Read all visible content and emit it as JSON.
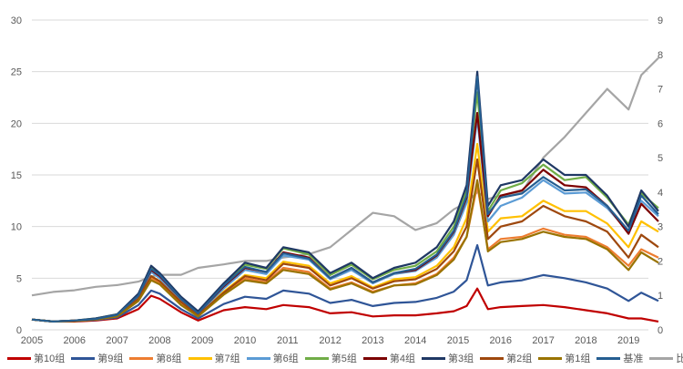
{
  "chart_data": {
    "type": "line",
    "title": "",
    "xlabel": "",
    "ylabel": "",
    "xlim": [
      2005,
      2019.8
    ],
    "ylim": [
      0,
      30
    ],
    "y2lim": [
      0,
      9
    ],
    "grid": "horizontal",
    "legend_placement": "bottom",
    "x_ticks": [
      "2005",
      "2006",
      "2007",
      "2008",
      "2009",
      "2010",
      "2011",
      "2012",
      "2013",
      "2014",
      "2015",
      "2016",
      "2017",
      "2018",
      "2019"
    ],
    "y_ticks": [
      "0",
      "5",
      "10",
      "15",
      "20",
      "25",
      "30"
    ],
    "y2_ticks": [
      "0",
      "1",
      "2",
      "3",
      "4",
      "5",
      "6",
      "7",
      "8",
      "9"
    ],
    "x": [
      2005.0,
      2005.5,
      2006.0,
      2006.5,
      2007.0,
      2007.5,
      2007.8,
      2008.0,
      2008.5,
      2008.9,
      2009.5,
      2010.0,
      2010.5,
      2010.9,
      2011.5,
      2012.0,
      2012.5,
      2013.0,
      2013.5,
      2014.0,
      2014.5,
      2014.9,
      2015.2,
      2015.45,
      2015.7,
      2016.0,
      2016.5,
      2017.0,
      2017.5,
      2018.0,
      2018.5,
      2019.0,
      2019.3,
      2019.7
    ],
    "series": [
      {
        "name": "比价(右轴)",
        "color": "#A5A5A5",
        "axis": "right",
        "values": [
          1.0,
          1.1,
          1.15,
          1.25,
          1.3,
          1.4,
          1.55,
          1.6,
          1.6,
          1.8,
          1.9,
          2.0,
          2.0,
          2.1,
          2.2,
          2.4,
          2.9,
          3.4,
          3.3,
          2.9,
          3.1,
          3.5,
          3.7,
          4.0,
          3.8,
          3.9,
          4.0,
          5.0,
          5.6,
          6.3,
          7.0,
          6.4,
          7.4,
          7.9
        ]
      },
      {
        "name": "第10组",
        "color": "#C00000",
        "axis": "left",
        "values": [
          1.0,
          0.8,
          0.8,
          0.9,
          1.1,
          2.0,
          3.3,
          3.0,
          1.7,
          0.9,
          1.9,
          2.2,
          2.0,
          2.4,
          2.2,
          1.6,
          1.7,
          1.3,
          1.4,
          1.4,
          1.6,
          1.8,
          2.3,
          4.0,
          2.0,
          2.2,
          2.3,
          2.4,
          2.2,
          1.9,
          1.6,
          1.1,
          1.1,
          0.8
        ]
      },
      {
        "name": "第9组",
        "color": "#2F5597",
        "axis": "left",
        "values": [
          1.0,
          0.8,
          0.85,
          0.95,
          1.2,
          2.4,
          3.8,
          3.5,
          2.0,
          1.1,
          2.5,
          3.2,
          3.0,
          3.8,
          3.5,
          2.6,
          2.9,
          2.3,
          2.6,
          2.7,
          3.1,
          3.7,
          4.8,
          8.2,
          4.3,
          4.6,
          4.8,
          5.3,
          5.0,
          4.6,
          4.0,
          2.8,
          3.6,
          2.8
        ]
      },
      {
        "name": "第8组",
        "color": "#ED7D31",
        "axis": "left",
        "values": [
          1.0,
          0.8,
          0.85,
          1.0,
          1.3,
          2.9,
          5.0,
          4.5,
          2.5,
          1.3,
          3.5,
          5.0,
          4.6,
          6.0,
          5.6,
          4.0,
          4.6,
          3.7,
          4.3,
          4.5,
          5.4,
          7.0,
          9.0,
          14.0,
          7.8,
          8.8,
          9.0,
          9.8,
          9.2,
          9.0,
          8.0,
          6.2,
          7.8,
          7.0
        ]
      },
      {
        "name": "第7组",
        "color": "#FFC000",
        "axis": "left",
        "values": [
          1.0,
          0.8,
          0.9,
          1.0,
          1.35,
          3.0,
          5.2,
          4.7,
          2.7,
          1.4,
          3.7,
          5.3,
          5.0,
          6.6,
          6.2,
          4.5,
          5.2,
          4.1,
          4.9,
          5.1,
          6.2,
          8.0,
          10.8,
          18.0,
          9.5,
          10.8,
          11.0,
          12.5,
          11.5,
          11.5,
          10.3,
          8.0,
          10.5,
          9.5
        ]
      },
      {
        "name": "第6组",
        "color": "#5B9BD5",
        "axis": "left",
        "values": [
          1.0,
          0.8,
          0.9,
          1.05,
          1.4,
          3.2,
          5.6,
          5.0,
          2.9,
          1.55,
          4.0,
          5.8,
          5.4,
          7.2,
          6.8,
          4.9,
          5.8,
          4.5,
          5.4,
          5.7,
          7.0,
          9.2,
          12.3,
          20.5,
          10.5,
          12.0,
          12.8,
          14.5,
          13.2,
          13.3,
          11.8,
          9.5,
          12.5,
          11.0
        ]
      },
      {
        "name": "第5组",
        "color": "#70AD47",
        "axis": "left",
        "values": [
          1.0,
          0.8,
          0.9,
          1.1,
          1.5,
          3.4,
          6.0,
          5.4,
          3.1,
          1.7,
          4.4,
          6.3,
          5.9,
          7.9,
          7.3,
          5.3,
          6.3,
          4.9,
          5.8,
          6.2,
          7.6,
          10.0,
          13.5,
          23.0,
          11.5,
          13.5,
          14.2,
          16.0,
          14.5,
          14.8,
          12.8,
          10.2,
          13.2,
          11.8
        ]
      },
      {
        "name": "第4组",
        "color": "#7B0000",
        "axis": "left",
        "values": [
          1.0,
          0.8,
          0.9,
          1.05,
          1.45,
          3.3,
          5.8,
          5.2,
          3.0,
          1.6,
          4.2,
          6.0,
          5.6,
          7.5,
          7.0,
          5.0,
          6.0,
          4.6,
          5.5,
          5.8,
          7.2,
          9.5,
          12.8,
          21.0,
          11.0,
          13.0,
          13.5,
          15.5,
          14.0,
          13.8,
          12.0,
          9.3,
          12.2,
          10.5
        ]
      },
      {
        "name": "第3组",
        "color": "#1F3864",
        "axis": "left",
        "values": [
          1.0,
          0.8,
          0.9,
          1.1,
          1.5,
          3.5,
          6.2,
          5.5,
          3.2,
          1.8,
          4.5,
          6.5,
          6.0,
          8.0,
          7.5,
          5.5,
          6.5,
          5.0,
          6.0,
          6.5,
          8.0,
          10.5,
          14.0,
          25.0,
          12.0,
          14.0,
          14.5,
          16.5,
          15.0,
          15.0,
          13.0,
          10.0,
          13.5,
          11.5
        ]
      },
      {
        "name": "第2组",
        "color": "#9E480E",
        "axis": "left",
        "values": [
          1.0,
          0.8,
          0.9,
          1.0,
          1.35,
          3.0,
          5.2,
          4.7,
          2.7,
          1.4,
          3.6,
          5.2,
          4.8,
          6.4,
          6.0,
          4.3,
          5.0,
          4.0,
          4.7,
          4.9,
          5.9,
          7.6,
          10.0,
          16.5,
          8.8,
          10.0,
          10.5,
          12.0,
          11.0,
          10.5,
          9.5,
          7.0,
          9.2,
          8.0
        ]
      },
      {
        "name": "第1组",
        "color": "#997300",
        "axis": "left",
        "values": [
          1.0,
          0.8,
          0.85,
          1.0,
          1.3,
          2.8,
          4.8,
          4.4,
          2.4,
          1.3,
          3.4,
          4.8,
          4.5,
          5.8,
          5.4,
          3.9,
          4.5,
          3.6,
          4.3,
          4.4,
          5.3,
          6.8,
          9.0,
          14.5,
          7.6,
          8.5,
          8.8,
          9.5,
          9.0,
          8.8,
          7.8,
          5.8,
          7.5,
          6.5
        ]
      },
      {
        "name": "基准",
        "color": "#255E91",
        "axis": "left",
        "values": [
          1.0,
          0.8,
          0.9,
          1.05,
          1.45,
          3.3,
          5.9,
          5.3,
          3.0,
          1.6,
          4.3,
          6.1,
          5.6,
          7.4,
          6.9,
          5.0,
          6.0,
          4.6,
          5.5,
          5.9,
          7.3,
          9.6,
          13.0,
          24.5,
          11.2,
          12.8,
          13.2,
          14.8,
          13.5,
          13.6,
          12.0,
          9.6,
          13.0,
          11.2
        ]
      }
    ],
    "legend_order": [
      "第10组",
      "第9组",
      "第8组",
      "第7组",
      "第6组",
      "第5组",
      "第4组",
      "第3组",
      "第2组",
      "第1组",
      "基准",
      "比价(右轴)"
    ]
  }
}
